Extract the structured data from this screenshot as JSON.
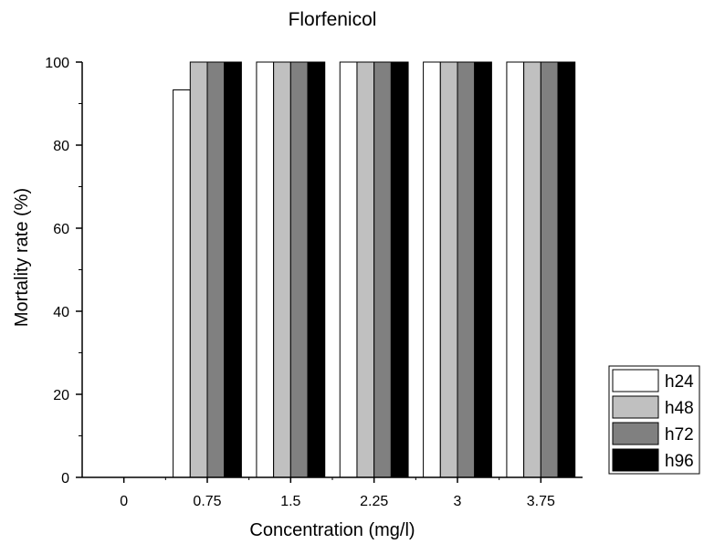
{
  "chart_data": {
    "type": "bar",
    "title": "Florfenicol",
    "xlabel": "Concentration (mg/l)",
    "ylabel": "Mortality rate (%)",
    "categories": [
      "0",
      "0.75",
      "1.5",
      "2.25",
      "3",
      "3.75"
    ],
    "ylim": [
      0,
      100
    ],
    "yticks": [
      0,
      20,
      40,
      60,
      80,
      100
    ],
    "grid": false,
    "legend_position": "bottom-right",
    "series": [
      {
        "name": "h24",
        "color": "#ffffff",
        "values": [
          0,
          93.3,
          100,
          100,
          100,
          100
        ]
      },
      {
        "name": "h48",
        "color": "#c0c0c0",
        "values": [
          0,
          100,
          100,
          100,
          100,
          100
        ]
      },
      {
        "name": "h72",
        "color": "#808080",
        "values": [
          0,
          100,
          100,
          100,
          100,
          100
        ]
      },
      {
        "name": "h96",
        "color": "#000000",
        "values": [
          0,
          100,
          100,
          100,
          100,
          100
        ]
      }
    ]
  }
}
